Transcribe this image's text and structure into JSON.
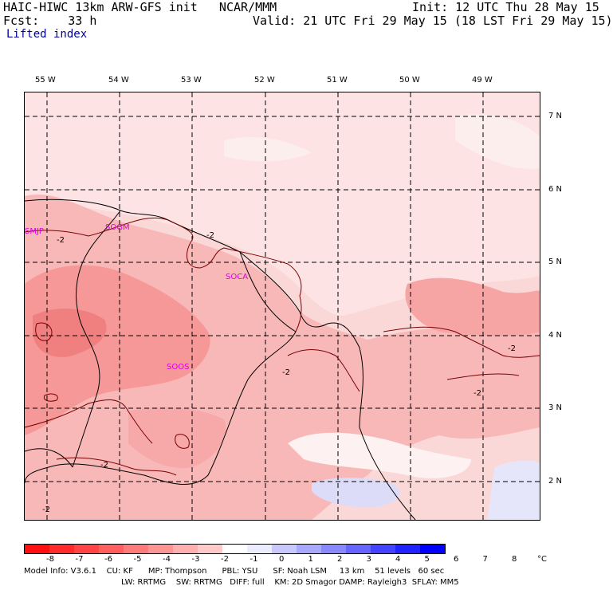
{
  "header": {
    "left_line1": "HAIC-HIWC 13km ARW-GFS init   NCAR/MMM",
    "left_line2": "Fcst:    33 h",
    "right_line1": "Init: 12 UTC Thu 28 May 15",
    "right_line2": "Valid: 21 UTC Fri 29 May 15 (18 LST Fri 29 May 15)",
    "field": "Lifted index"
  },
  "longitudes": [
    "55 W",
    "54 W",
    "53 W",
    "52 W",
    "51 W",
    "50 W",
    "49 W"
  ],
  "latitudes": [
    "7 N",
    "6 N",
    "5 N",
    "4 N",
    "3 N",
    "2 N"
  ],
  "stations": [
    "SMJP",
    "SOGM",
    "SOCA",
    "SOOS"
  ],
  "contour_label": "-2",
  "colorbar": {
    "ticks": [
      "-8",
      "-7",
      "-6",
      "-5",
      "-4",
      "-3",
      "-2",
      "-1",
      "0",
      "1",
      "2",
      "3",
      "4",
      "5",
      "6",
      "7",
      "8"
    ],
    "unit": "°C",
    "colors": [
      "#ff1010",
      "#ff2a2a",
      "#ff4545",
      "#ff5f5f",
      "#ff7a7a",
      "#ff9494",
      "#ffafaf",
      "#ffc9c9",
      "#ffffff",
      "#ececff",
      "#c8c8ff",
      "#a8a8ff",
      "#8888ff",
      "#6666ff",
      "#4444ff",
      "#2222ff",
      "#0000ff"
    ]
  },
  "footer": {
    "line1": "Model Info: V3.6.1    CU: KF      MP: Thompson      PBL: YSU      SF: Noah LSM     13 km    51 levels   60 sec",
    "line2": "LW: RRTMG    SW: RRTMG   DIFF: full    KM: 2D Smagor DAMP: Rayleigh3  SFLAY: MM5"
  }
}
